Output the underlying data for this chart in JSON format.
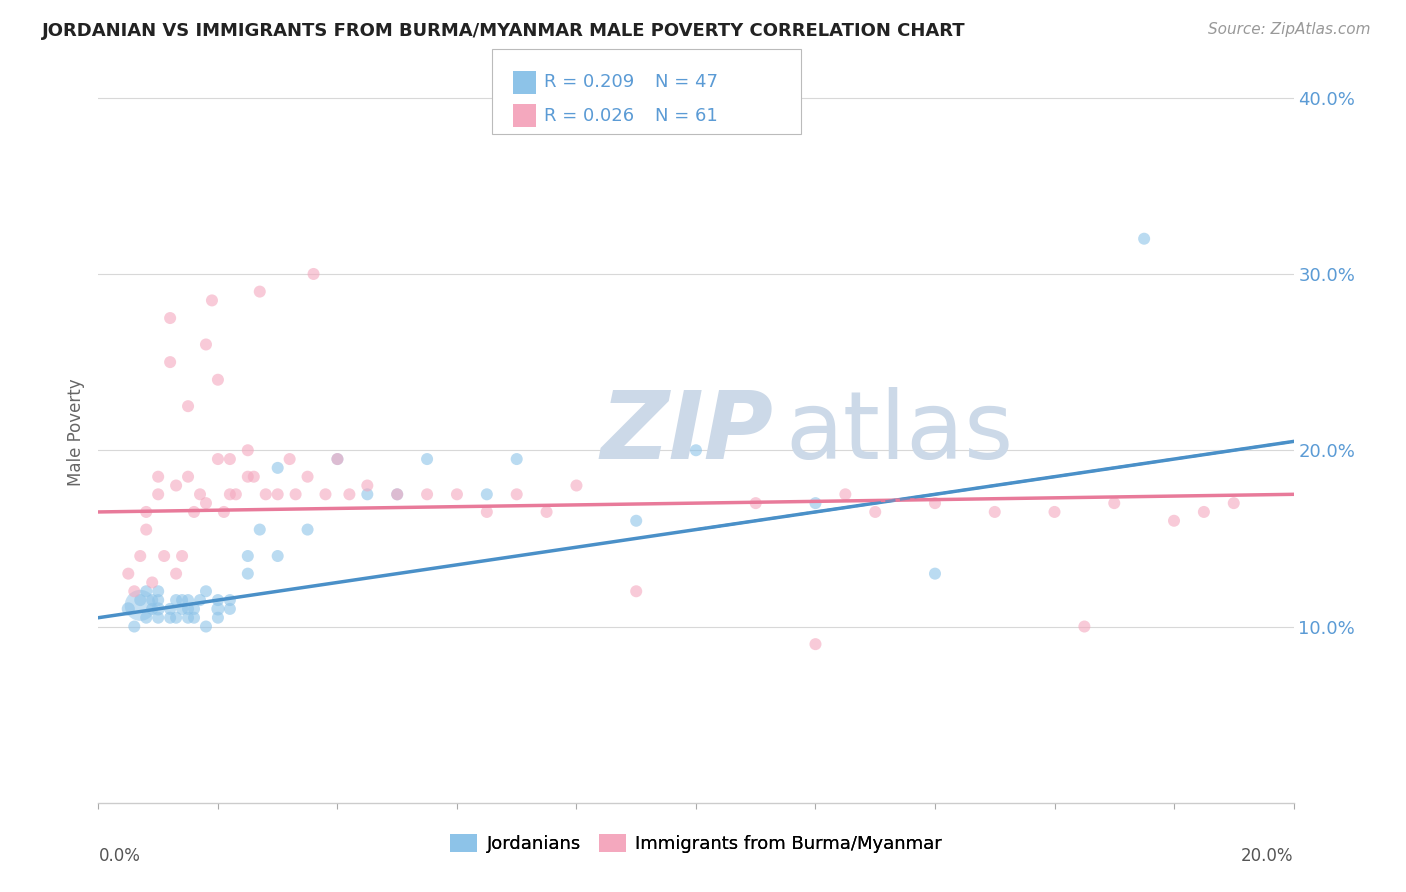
{
  "title": "JORDANIAN VS IMMIGRANTS FROM BURMA/MYANMAR MALE POVERTY CORRELATION CHART",
  "source": "Source: ZipAtlas.com",
  "ylabel": "Male Poverty",
  "legend_r1": "R = 0.209",
  "legend_n1": "N = 47",
  "legend_r2": "R = 0.026",
  "legend_n2": "N = 61",
  "color_blue": "#8dc3e8",
  "color_pink": "#f4a8be",
  "color_blue_dark": "#3a7abf",
  "color_blue_line": "#4a90c8",
  "color_pink_line": "#e87a9a",
  "color_axis_text": "#5b9bd5",
  "ytick_labels": [
    "10.0%",
    "20.0%",
    "30.0%",
    "40.0%"
  ],
  "ytick_values": [
    0.1,
    0.2,
    0.3,
    0.4
  ],
  "xmin": 0.0,
  "xmax": 0.2,
  "ymin": 0.0,
  "ymax": 0.42,
  "blue_scatter_x": [
    0.005,
    0.006,
    0.007,
    0.008,
    0.008,
    0.009,
    0.009,
    0.01,
    0.01,
    0.01,
    0.01,
    0.012,
    0.012,
    0.013,
    0.013,
    0.014,
    0.014,
    0.015,
    0.015,
    0.015,
    0.016,
    0.016,
    0.017,
    0.018,
    0.018,
    0.02,
    0.02,
    0.02,
    0.022,
    0.022,
    0.025,
    0.025,
    0.027,
    0.03,
    0.03,
    0.035,
    0.04,
    0.045,
    0.05,
    0.055,
    0.065,
    0.07,
    0.09,
    0.1,
    0.12,
    0.14,
    0.175
  ],
  "blue_scatter_y": [
    0.11,
    0.1,
    0.115,
    0.105,
    0.12,
    0.11,
    0.115,
    0.105,
    0.11,
    0.115,
    0.12,
    0.105,
    0.11,
    0.105,
    0.115,
    0.11,
    0.115,
    0.105,
    0.11,
    0.115,
    0.105,
    0.11,
    0.115,
    0.1,
    0.12,
    0.105,
    0.11,
    0.115,
    0.11,
    0.115,
    0.13,
    0.14,
    0.155,
    0.14,
    0.19,
    0.155,
    0.195,
    0.175,
    0.175,
    0.195,
    0.175,
    0.195,
    0.16,
    0.2,
    0.17,
    0.13,
    0.32
  ],
  "blue_scatter_sizes": [
    30,
    25,
    25,
    25,
    25,
    25,
    25,
    25,
    30,
    25,
    25,
    25,
    25,
    25,
    25,
    25,
    25,
    25,
    25,
    25,
    25,
    25,
    25,
    25,
    25,
    25,
    30,
    25,
    25,
    25,
    25,
    25,
    25,
    25,
    25,
    25,
    25,
    25,
    25,
    25,
    25,
    25,
    25,
    25,
    25,
    25,
    25
  ],
  "blue_large_dot_idx": 0,
  "blue_large_dot_size": 400,
  "pink_scatter_x": [
    0.005,
    0.006,
    0.007,
    0.008,
    0.008,
    0.009,
    0.01,
    0.01,
    0.011,
    0.012,
    0.012,
    0.013,
    0.013,
    0.014,
    0.015,
    0.015,
    0.016,
    0.017,
    0.018,
    0.018,
    0.019,
    0.02,
    0.02,
    0.021,
    0.022,
    0.022,
    0.023,
    0.025,
    0.025,
    0.026,
    0.027,
    0.028,
    0.03,
    0.032,
    0.033,
    0.035,
    0.036,
    0.038,
    0.04,
    0.042,
    0.045,
    0.05,
    0.055,
    0.06,
    0.065,
    0.07,
    0.075,
    0.08,
    0.09,
    0.11,
    0.12,
    0.125,
    0.13,
    0.14,
    0.15,
    0.16,
    0.165,
    0.17,
    0.18,
    0.185,
    0.19
  ],
  "pink_scatter_y": [
    0.13,
    0.12,
    0.14,
    0.155,
    0.165,
    0.125,
    0.175,
    0.185,
    0.14,
    0.25,
    0.275,
    0.18,
    0.13,
    0.14,
    0.185,
    0.225,
    0.165,
    0.175,
    0.17,
    0.26,
    0.285,
    0.195,
    0.24,
    0.165,
    0.195,
    0.175,
    0.175,
    0.2,
    0.185,
    0.185,
    0.29,
    0.175,
    0.175,
    0.195,
    0.175,
    0.185,
    0.3,
    0.175,
    0.195,
    0.175,
    0.18,
    0.175,
    0.175,
    0.175,
    0.165,
    0.175,
    0.165,
    0.18,
    0.12,
    0.17,
    0.09,
    0.175,
    0.165,
    0.17,
    0.165,
    0.165,
    0.1,
    0.17,
    0.16,
    0.165,
    0.17
  ],
  "pink_scatter_sizes": [
    25,
    25,
    25,
    25,
    25,
    25,
    25,
    25,
    25,
    25,
    25,
    25,
    25,
    25,
    25,
    25,
    25,
    25,
    25,
    25,
    25,
    25,
    25,
    25,
    25,
    25,
    25,
    25,
    25,
    25,
    25,
    25,
    25,
    25,
    25,
    25,
    25,
    25,
    25,
    25,
    25,
    25,
    25,
    25,
    25,
    25,
    25,
    25,
    25,
    25,
    25,
    25,
    25,
    25,
    25,
    25,
    25,
    25,
    25,
    25,
    25
  ],
  "watermark_zip": "ZIP",
  "watermark_atlas": "atlas",
  "watermark_color": "#ccd9e8",
  "background_color": "#ffffff",
  "grid_color": "#d8d8d8"
}
